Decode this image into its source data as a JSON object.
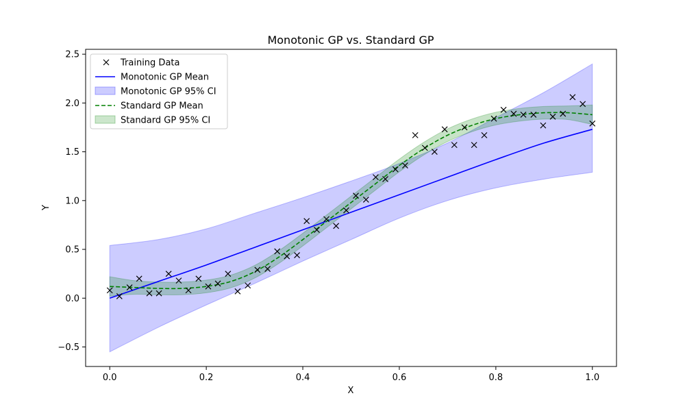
{
  "chart_data": {
    "type": "line",
    "title": "Monotonic GP vs. Standard GP",
    "xlabel": "X",
    "ylabel": "Y",
    "xlim": [
      -0.05,
      1.05
    ],
    "ylim": [
      -0.7,
      2.55
    ],
    "xticks": [
      0.0,
      0.2,
      0.4,
      0.6,
      0.8,
      1.0
    ],
    "xtick_labels": [
      "0.0",
      "0.2",
      "0.4",
      "0.6",
      "0.8",
      "1.0"
    ],
    "yticks": [
      -0.5,
      0.0,
      0.5,
      1.0,
      1.5,
      2.0,
      2.5
    ],
    "ytick_labels": [
      "−0.5",
      "0.0",
      "0.5",
      "1.0",
      "1.5",
      "2.0",
      "2.5"
    ],
    "grid": false,
    "legend_position": "top-left",
    "legend": [
      {
        "label": "Training Data",
        "kind": "marker",
        "color": "#000000"
      },
      {
        "label": "Monotonic GP Mean",
        "kind": "line",
        "color": "#0000ff"
      },
      {
        "label": "Monotonic GP 95% CI",
        "kind": "patch",
        "color": "#0000ff"
      },
      {
        "label": "Standard GP Mean",
        "kind": "dashed",
        "color": "#008000"
      },
      {
        "label": "Standard GP 95% CI",
        "kind": "patch",
        "color": "#008000"
      }
    ],
    "training_data": {
      "x": [
        0.0,
        0.02,
        0.041,
        0.061,
        0.082,
        0.102,
        0.122,
        0.143,
        0.163,
        0.184,
        0.204,
        0.224,
        0.245,
        0.265,
        0.286,
        0.306,
        0.327,
        0.347,
        0.367,
        0.388,
        0.408,
        0.429,
        0.449,
        0.469,
        0.49,
        0.51,
        0.531,
        0.551,
        0.571,
        0.592,
        0.612,
        0.633,
        0.653,
        0.673,
        0.694,
        0.714,
        0.735,
        0.755,
        0.776,
        0.796,
        0.816,
        0.837,
        0.857,
        0.878,
        0.898,
        0.918,
        0.939,
        0.959,
        0.98,
        1.0
      ],
      "y": [
        0.08,
        0.02,
        0.11,
        0.2,
        0.05,
        0.05,
        0.25,
        0.18,
        0.08,
        0.2,
        0.12,
        0.15,
        0.25,
        0.07,
        0.13,
        0.29,
        0.3,
        0.48,
        0.43,
        0.44,
        0.79,
        0.7,
        0.81,
        0.74,
        0.9,
        1.05,
        1.01,
        1.24,
        1.22,
        1.32,
        1.36,
        1.67,
        1.54,
        1.5,
        1.73,
        1.57,
        1.75,
        1.57,
        1.67,
        1.84,
        1.93,
        1.89,
        1.88,
        1.88,
        1.77,
        1.86,
        1.89,
        2.06,
        1.99,
        1.79
      ]
    },
    "monotonic_gp": {
      "x": [
        0.0,
        0.1,
        0.2,
        0.3,
        0.4,
        0.5,
        0.6,
        0.7,
        0.8,
        0.9,
        1.0
      ],
      "mean": [
        0.0,
        0.17,
        0.34,
        0.52,
        0.7,
        0.88,
        1.06,
        1.24,
        1.42,
        1.59,
        1.73
      ],
      "lower": [
        -0.55,
        -0.3,
        -0.07,
        0.15,
        0.38,
        0.6,
        0.82,
        1.0,
        1.13,
        1.22,
        1.29
      ],
      "upper": [
        0.54,
        0.6,
        0.71,
        0.87,
        1.03,
        1.2,
        1.38,
        1.59,
        1.85,
        2.11,
        2.4
      ]
    },
    "standard_gp": {
      "x": [
        0.0,
        0.05,
        0.1,
        0.15,
        0.2,
        0.25,
        0.3,
        0.35,
        0.4,
        0.45,
        0.5,
        0.55,
        0.6,
        0.65,
        0.7,
        0.75,
        0.8,
        0.85,
        0.9,
        0.95,
        1.0
      ],
      "mean": [
        0.12,
        0.11,
        0.1,
        0.1,
        0.12,
        0.17,
        0.27,
        0.42,
        0.6,
        0.79,
        0.98,
        1.17,
        1.36,
        1.53,
        1.67,
        1.77,
        1.84,
        1.88,
        1.9,
        1.9,
        1.88
      ],
      "band": [
        0.1,
        0.07,
        0.065,
        0.065,
        0.065,
        0.065,
        0.065,
        0.065,
        0.065,
        0.065,
        0.065,
        0.065,
        0.065,
        0.065,
        0.065,
        0.065,
        0.065,
        0.065,
        0.065,
        0.07,
        0.1
      ]
    }
  }
}
